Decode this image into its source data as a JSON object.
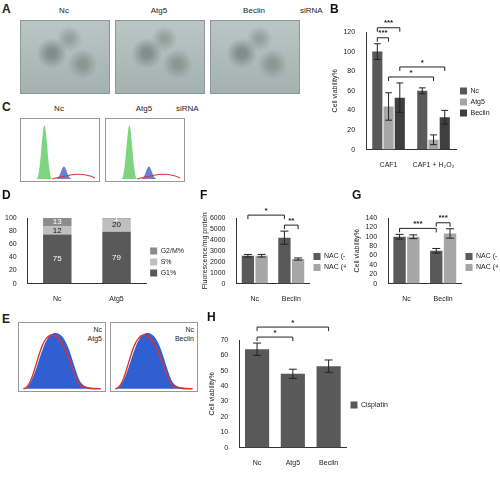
{
  "chart_data": [
    {
      "type": "bar",
      "title": "B",
      "categories": [
        "CAF1",
        "CAF1 + H₂O₂"
      ],
      "y_label": "Cell viability%",
      "ylim": [
        0,
        120
      ],
      "yticks": [
        0,
        20,
        40,
        60,
        80,
        100,
        120
      ],
      "grid": false,
      "legend": "right",
      "series": [
        {
          "name": "Nc",
          "color": "#595959",
          "values": [
            100,
            60
          ],
          "errors": [
            8,
            3
          ]
        },
        {
          "name": "Atg5",
          "color": "#a6a6a6",
          "values": [
            44,
            10
          ],
          "errors": [
            14,
            5
          ]
        },
        {
          "name": "Beclin",
          "color": "#3f3f3f",
          "values": [
            53,
            33
          ],
          "errors": [
            15,
            7
          ]
        }
      ],
      "annotations": [
        "***",
        "***",
        "*",
        "*"
      ]
    },
    {
      "type": "bar",
      "title": "D",
      "categories": [
        "Nc",
        "Atg5"
      ],
      "ylim": [
        0,
        100
      ],
      "yticks": [
        0,
        20,
        40,
        60,
        80,
        100
      ],
      "grid": false,
      "legend": "right",
      "stacked": true,
      "data_labels": true,
      "series": [
        {
          "name": "G1%",
          "color": "#595959",
          "values": [
            75,
            79
          ]
        },
        {
          "name": "S%",
          "color": "#bfbfbf",
          "values": [
            12,
            20
          ]
        },
        {
          "name": "G2/M%",
          "color": "#8c8c8c",
          "values": [
            13,
            1
          ]
        }
      ]
    },
    {
      "type": "bar",
      "title": "F",
      "categories": [
        "Nc",
        "Beclin"
      ],
      "y_label": "Fluorescence/mg protein",
      "ylim": [
        0,
        6000
      ],
      "yticks": [
        0,
        1000,
        2000,
        3000,
        4000,
        5000,
        6000
      ],
      "grid": false,
      "legend": "right",
      "series": [
        {
          "name": "NAC (-)",
          "color": "#595959",
          "values": [
            2550,
            4200
          ],
          "errors": [
            120,
            600
          ]
        },
        {
          "name": "NAC (+)",
          "color": "#a6a6a6",
          "values": [
            2550,
            2250
          ],
          "errors": [
            120,
            100
          ]
        }
      ],
      "annotations": [
        "*",
        "**"
      ]
    },
    {
      "type": "bar",
      "title": "G",
      "categories": [
        "Nc",
        "Beclin"
      ],
      "y_label": "Cell viability%",
      "ylim": [
        0,
        140
      ],
      "yticks": [
        0,
        20,
        40,
        60,
        80,
        100,
        120,
        140
      ],
      "grid": false,
      "legend": "right",
      "series": [
        {
          "name": "NAC (-)",
          "color": "#595959",
          "values": [
            100,
            70
          ],
          "errors": [
            5,
            5
          ]
        },
        {
          "name": "NAC (+)",
          "color": "#a6a6a6",
          "values": [
            100,
            107
          ],
          "errors": [
            4,
            10
          ]
        }
      ],
      "annotations": [
        "***",
        "***"
      ]
    },
    {
      "type": "bar",
      "title": "H",
      "categories": [
        "Nc",
        "Atg5",
        "Beclin"
      ],
      "y_label": "Cell viability%",
      "ylim": [
        0,
        70
      ],
      "yticks": [
        0,
        10,
        20,
        30,
        40,
        50,
        60,
        70
      ],
      "grid": false,
      "legend": "right",
      "series": [
        {
          "name": "Cisplatin",
          "color": "#595959",
          "values": [
            64,
            48,
            53
          ],
          "errors": [
            4,
            3,
            4
          ]
        }
      ],
      "annotations": [
        "*",
        "*"
      ]
    }
  ],
  "images": {
    "A": {
      "title": "A",
      "labels": [
        "Nc",
        "Atg5",
        "Beclin"
      ],
      "tag": "siRNA"
    },
    "C": {
      "title": "C",
      "labels": [
        "Nc",
        "Atg5"
      ],
      "tag": "siRNA"
    },
    "E": {
      "title": "E",
      "plots": [
        [
          "Nc",
          "Atg5"
        ],
        [
          "Nc",
          "Beclin"
        ]
      ]
    }
  }
}
